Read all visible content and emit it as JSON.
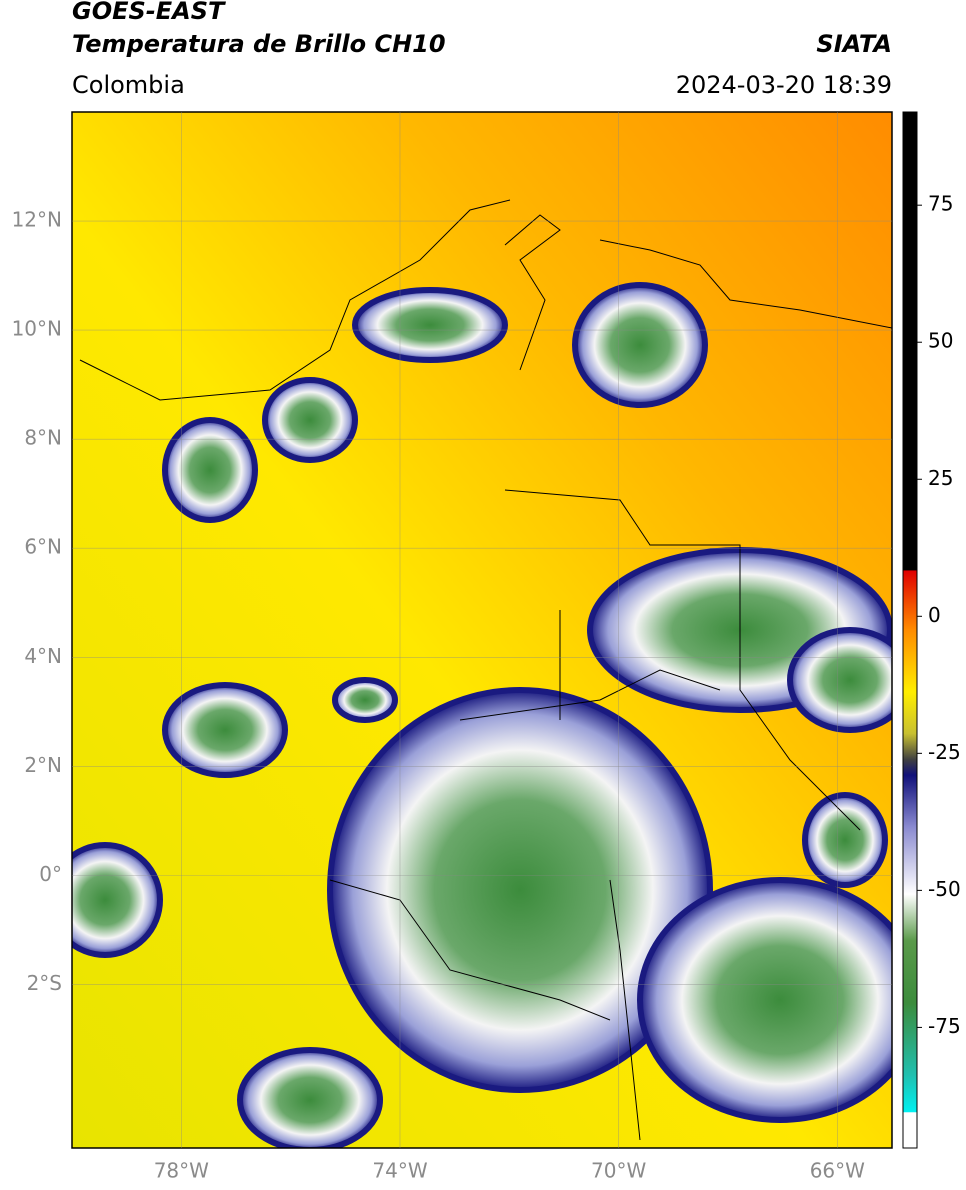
{
  "header": {
    "title": "GOES-EAST",
    "subtitle": "Temperatura de Brillo CH10",
    "source": "SIATA",
    "region": "Colombia",
    "timestamp": "2024-03-20 18:39"
  },
  "map": {
    "xlim": [
      -80,
      -65
    ],
    "ylim": [
      -5,
      14
    ],
    "xticks": [
      {
        "value": -78,
        "label": "78°W"
      },
      {
        "value": -74,
        "label": "74°W"
      },
      {
        "value": -70,
        "label": "70°W"
      },
      {
        "value": -66,
        "label": "66°W"
      }
    ],
    "yticks": [
      {
        "value": 12,
        "label": "12°N"
      },
      {
        "value": 10,
        "label": "10°N"
      },
      {
        "value": 8,
        "label": "8°N"
      },
      {
        "value": 6,
        "label": "6°N"
      },
      {
        "value": 4,
        "label": "4°N"
      },
      {
        "value": 2,
        "label": "2°N"
      },
      {
        "value": 0,
        "label": "0°"
      },
      {
        "value": -2,
        "label": "2°S"
      }
    ],
    "grid": true
  },
  "colorbar": {
    "ylim": [
      -97,
      92
    ],
    "yticks": [
      75,
      50,
      25,
      0,
      -25,
      -50,
      -75
    ]
  }
}
